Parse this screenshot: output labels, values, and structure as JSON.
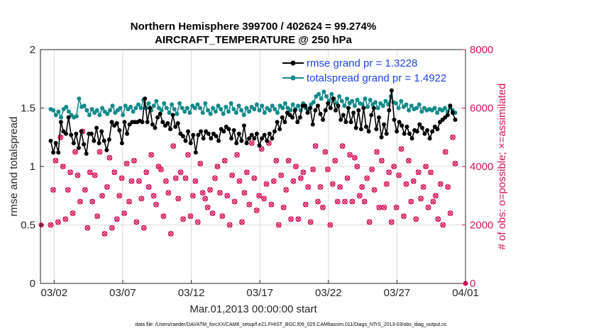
{
  "colors": {
    "rmse": "#000000",
    "spread": "#138a8a",
    "obs": "#d6125a",
    "legend_text": "#1f44e6",
    "grid": "#d9d9d9"
  },
  "chart_data": {
    "type": "line",
    "title": "Northern Hemisphere 399700 / 402624 = 99.274%",
    "subtitle": "AIRCRAFT_TEMPERATURE @ 250 hPa",
    "xlabel": "Mar.01,2013 00:00:00 start",
    "ylabel_left": "rmse and totalspread",
    "ylabel_right": "# of obs: o=possible; ×=assimilated",
    "xlim": [
      0,
      31
    ],
    "ylim_left": [
      0,
      2
    ],
    "ylim_right": [
      0,
      8000
    ],
    "x_ticks": [
      {
        "x": 1,
        "label": "03/02"
      },
      {
        "x": 6,
        "label": "03/07"
      },
      {
        "x": 11,
        "label": "03/12"
      },
      {
        "x": 16,
        "label": "03/17"
      },
      {
        "x": 21,
        "label": "03/22"
      },
      {
        "x": 26,
        "label": "03/27"
      },
      {
        "x": 31,
        "label": "04/01"
      }
    ],
    "y_ticks_left": [
      "0",
      "0.5",
      "1",
      "1.5",
      "2"
    ],
    "y_ticks_right": [
      "0",
      "2000",
      "4000",
      "6000",
      "8000"
    ],
    "grid": true,
    "legend_position": "top-right",
    "series": [
      {
        "name": "rmse grand pr = 1.3228",
        "axis": "left",
        "marker": "circle",
        "values": [
          1.22,
          1.12,
          1.2,
          1.12,
          1.38,
          1.3,
          1.28,
          1.42,
          1.27,
          1.2,
          1.28,
          1.16,
          1.3,
          1.19,
          1.11,
          1.28,
          1.28,
          1.22,
          1.33,
          1.2,
          1.3,
          1.22,
          1.14,
          1.23,
          1.38,
          1.35,
          1.37,
          1.31,
          1.2,
          1.38,
          1.28,
          1.36,
          1.38,
          1.38,
          1.38,
          1.39,
          1.38,
          1.58,
          1.38,
          1.5,
          1.36,
          1.33,
          1.42,
          1.45,
          1.38,
          1.35,
          1.37,
          1.32,
          1.44,
          1.34,
          1.37,
          1.28,
          1.26,
          1.22,
          1.3,
          1.2,
          1.27,
          1.12,
          1.27,
          1.3,
          1.24,
          1.3,
          1.28,
          1.24,
          1.28,
          1.26,
          1.22,
          1.32,
          1.3,
          1.34,
          1.32,
          1.24,
          1.31,
          1.2,
          1.28,
          1.22,
          1.35,
          1.2,
          1.24,
          1.27,
          1.24,
          1.28,
          1.18,
          1.24,
          1.27,
          1.22,
          1.28,
          1.24,
          1.3,
          1.38,
          1.32,
          1.42,
          1.38,
          1.46,
          1.44,
          1.42,
          1.48,
          1.38,
          1.42,
          1.52,
          1.52,
          1.46,
          1.5,
          1.36,
          1.48,
          1.52,
          1.45,
          1.4,
          1.48,
          1.54,
          1.5,
          1.58,
          1.48,
          1.52,
          1.4,
          1.44,
          1.38,
          1.5,
          1.38,
          1.46,
          1.33,
          1.48,
          1.32,
          1.5,
          1.34,
          1.3,
          1.44,
          1.5,
          1.32,
          1.42,
          1.25,
          1.36,
          1.28,
          1.48,
          1.65,
          1.4,
          1.3,
          1.38,
          1.35,
          1.28,
          1.34,
          1.28,
          1.24,
          1.31,
          1.3,
          1.36,
          1.33,
          1.28,
          1.31,
          1.24,
          1.3,
          1.34,
          1.32,
          1.38,
          1.4,
          1.42,
          1.44,
          1.52,
          1.46,
          1.4
        ]
      },
      {
        "name": "totalspread grand pr = 1.4922",
        "axis": "left",
        "marker": "circle",
        "values": [
          1.49,
          1.48,
          1.44,
          1.47,
          1.42,
          1.49,
          1.51,
          1.47,
          1.44,
          1.42,
          1.43,
          1.58,
          1.51,
          1.52,
          1.48,
          1.44,
          1.49,
          1.46,
          1.48,
          1.44,
          1.5,
          1.47,
          1.45,
          1.48,
          1.52,
          1.46,
          1.48,
          1.5,
          1.44,
          1.52,
          1.49,
          1.51,
          1.47,
          1.5,
          1.53,
          1.5,
          1.57,
          1.5,
          1.54,
          1.48,
          1.52,
          1.56,
          1.5,
          1.48,
          1.54,
          1.5,
          1.46,
          1.53,
          1.49,
          1.45,
          1.54,
          1.5,
          1.47,
          1.5,
          1.46,
          1.52,
          1.5,
          1.53,
          1.5,
          1.46,
          1.54,
          1.48,
          1.45,
          1.5,
          1.47,
          1.52,
          1.49,
          1.45,
          1.51,
          1.47,
          1.54,
          1.49,
          1.46,
          1.52,
          1.48,
          1.44,
          1.5,
          1.47,
          1.51,
          1.49,
          1.53,
          1.48,
          1.52,
          1.46,
          1.5,
          1.48,
          1.52,
          1.49,
          1.46,
          1.52,
          1.5,
          1.54,
          1.5,
          1.48,
          1.53,
          1.49,
          1.52,
          1.48,
          1.54,
          1.5,
          1.49,
          1.53,
          1.55,
          1.6,
          1.62,
          1.58,
          1.64,
          1.6,
          1.56,
          1.62,
          1.58,
          1.54,
          1.6,
          1.56,
          1.52,
          1.58,
          1.54,
          1.56,
          1.52,
          1.57,
          1.54,
          1.53,
          1.58,
          1.51,
          1.57,
          1.53,
          1.55,
          1.5,
          1.54,
          1.52,
          1.56,
          1.53,
          1.6,
          1.55,
          1.54,
          1.5,
          1.56,
          1.51,
          1.53,
          1.48,
          1.52,
          1.49,
          1.5,
          1.53,
          1.47,
          1.5,
          1.48,
          1.49,
          1.48,
          1.5,
          1.46,
          1.49,
          1.48,
          1.5,
          1.47,
          1.51,
          1.48,
          1.46
        ]
      },
      {
        "name": "# of obs possible",
        "axis": "right",
        "marker": "o",
        "values": [
          2000,
          3200,
          4200,
          2100,
          5000,
          4000,
          2200,
          3200,
          3800,
          2400,
          4500,
          3700,
          2800,
          5200,
          3200,
          1900,
          3800,
          2800,
          3700,
          2300,
          4500,
          3000,
          1700,
          3300,
          4300,
          1900,
          3800,
          2200,
          3000,
          3600,
          2400,
          4100,
          2800,
          3500,
          4200,
          2100,
          3500,
          2900,
          1900,
          3800,
          3300,
          4400,
          3000,
          2700,
          4000,
          3900,
          2300,
          3500,
          3100,
          1700,
          4700,
          3600,
          2900,
          3800,
          2200,
          3600,
          4400,
          2300,
          3000,
          3500,
          2100,
          4100,
          3100,
          2900,
          2600,
          3200,
          2400,
          3600,
          4000,
          3100,
          2300,
          4200,
          3000,
          2000,
          3700,
          2800,
          4400,
          3500,
          2100,
          3100,
          3800,
          2700,
          4800,
          3600,
          2500,
          3000,
          4600,
          2900,
          3400,
          4800,
          2700,
          3500,
          4200,
          2000,
          3700,
          2600,
          3200,
          4200,
          2200,
          3500,
          4000,
          2200,
          3600,
          3800,
          2700,
          3300,
          2100,
          3900,
          4700,
          2800,
          3300,
          2600,
          4500,
          3900,
          2000,
          3400,
          4200,
          2800,
          3300,
          4700,
          2800,
          3600,
          4400,
          2800,
          4300,
          4000,
          3000,
          3300,
          2800,
          3600,
          2100,
          3900,
          3200,
          4500,
          2600,
          4200,
          2600,
          3400,
          3800,
          2100,
          4000,
          2600,
          3700,
          4600,
          2300,
          3400,
          4200,
          2800,
          3500,
          2200,
          3800,
          2900,
          3300,
          4000,
          2600,
          3800,
          2800,
          3000,
          2200,
          3400,
          2000,
          4500,
          3300,
          2400,
          5000,
          4100
        ]
      },
      {
        "name": "# of obs assimilated",
        "axis": "right",
        "marker": "x",
        "values": [
          2000,
          3200,
          4200,
          2100,
          5000,
          4000,
          2200,
          3200,
          3800,
          2400,
          4500,
          3700,
          2800,
          5200,
          3200,
          1900,
          3800,
          2800,
          3700,
          2300,
          4500,
          3000,
          1700,
          3300,
          4300,
          1900,
          3800,
          2200,
          3000,
          3600,
          2400,
          4100,
          2800,
          3500,
          4200,
          2100,
          3500,
          2900,
          1900,
          3800,
          3300,
          4400,
          3000,
          2700,
          4000,
          3900,
          2300,
          3500,
          3100,
          1700,
          4700,
          3600,
          2900,
          3800,
          2200,
          3600,
          4400,
          2300,
          3000,
          3500,
          2100,
          4100,
          3100,
          2900,
          2600,
          3200,
          2400,
          3600,
          4000,
          3100,
          2300,
          4200,
          3000,
          2000,
          3700,
          2800,
          4400,
          3500,
          2100,
          3100,
          3800,
          2700,
          4800,
          3600,
          2500,
          3000,
          4600,
          2900,
          3400,
          4800,
          2700,
          3500,
          4200,
          2000,
          3700,
          2600,
          3200,
          4200,
          2200,
          3500,
          4000,
          2200,
          3600,
          3800,
          2700,
          3300,
          2100,
          3900,
          4700,
          2800,
          3300,
          2600,
          4500,
          3900,
          2000,
          3400,
          4200,
          2800,
          3300,
          4700,
          2800,
          3600,
          4400,
          2800,
          4300,
          4000,
          3000,
          3300,
          2800,
          3600,
          2100,
          3900,
          3200,
          4500,
          2600,
          4200,
          2600,
          3400,
          3800,
          2100,
          4000,
          2600,
          3700,
          4600,
          2300,
          3400,
          4200,
          2800,
          3500,
          2200,
          3800,
          2900,
          3300,
          4000,
          2600,
          3800,
          2800,
          3000,
          2200,
          3400,
          2000,
          4500,
          3300,
          2400,
          5000,
          4100
        ]
      }
    ]
  },
  "footnote": "data file: /Users/raeder/DAI/ATM_forcXX/CAM6_setup/f.e21.FHIST_BGC.f09_025.CAM6assim.011/Diags_NTrS_2013-03/obs_diag_output.nc"
}
